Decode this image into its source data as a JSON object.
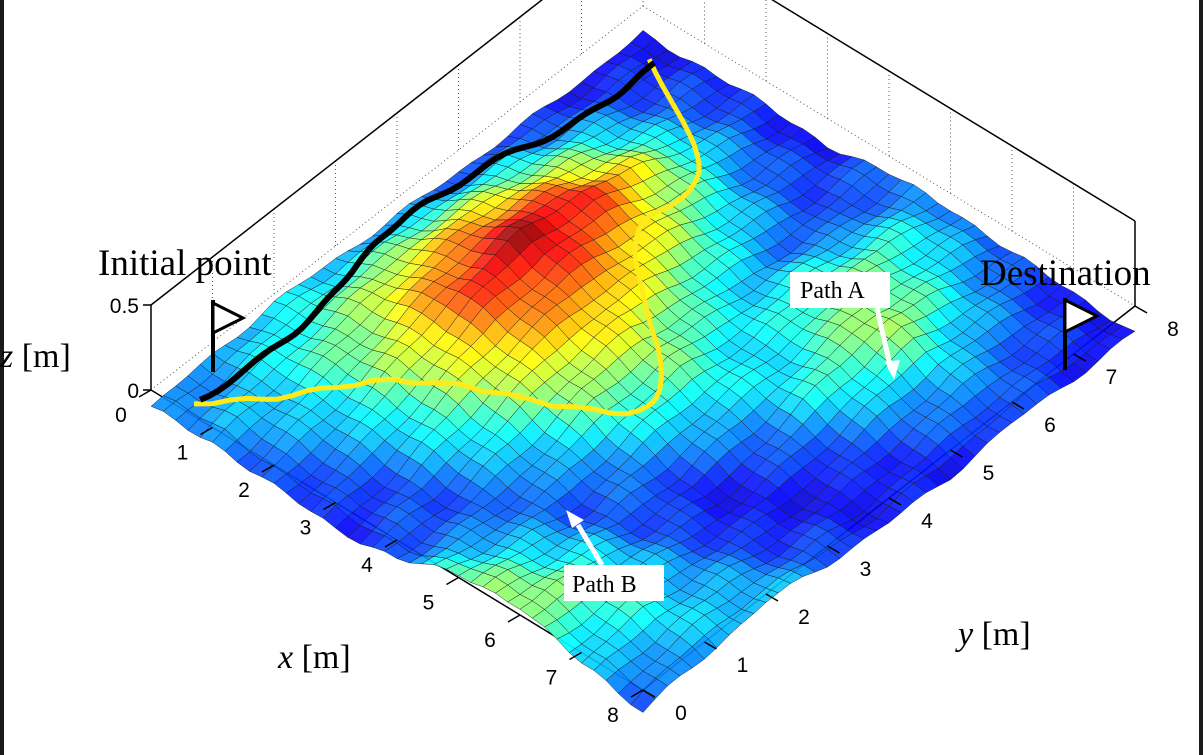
{
  "chart_data": {
    "type": "surface",
    "x": [
      0,
      1,
      2,
      3,
      4,
      5,
      6,
      7,
      8
    ],
    "y": [
      0,
      1,
      2,
      3,
      4,
      5,
      6,
      7,
      8
    ],
    "zlim": [
      0,
      0.5
    ],
    "x_ticks": [
      "0",
      "1",
      "2",
      "3",
      "4",
      "5",
      "6",
      "7",
      "8"
    ],
    "y_ticks": [
      "0",
      "1",
      "2",
      "3",
      "4",
      "5",
      "6",
      "7",
      "8"
    ],
    "z_ticks": [
      "0",
      "0.5"
    ],
    "xlabel_var": "x",
    "xlabel_unit": "[m]",
    "ylabel_var": "y",
    "ylabel_unit": "[m]",
    "zlabel_var": "z",
    "zlabel_unit": "[m]",
    "colormap": "jet",
    "grid": true,
    "z_grid_rows": [
      [
        0.1,
        0.13,
        0.15,
        0.13,
        0.1,
        0.08,
        0.06,
        0.05,
        0.05
      ],
      [
        0.12,
        0.16,
        0.22,
        0.28,
        0.3,
        0.25,
        0.18,
        0.1,
        0.06
      ],
      [
        0.08,
        0.14,
        0.25,
        0.38,
        0.45,
        0.4,
        0.28,
        0.14,
        0.06
      ],
      [
        0.05,
        0.1,
        0.22,
        0.32,
        0.35,
        0.3,
        0.2,
        0.1,
        0.05
      ],
      [
        0.1,
        0.08,
        0.14,
        0.24,
        0.26,
        0.18,
        0.12,
        0.08,
        0.1
      ],
      [
        0.22,
        0.14,
        0.08,
        0.14,
        0.18,
        0.15,
        0.22,
        0.2,
        0.12
      ],
      [
        0.26,
        0.2,
        0.1,
        0.05,
        0.1,
        0.2,
        0.26,
        0.16,
        0.08
      ],
      [
        0.14,
        0.18,
        0.12,
        0.06,
        0.05,
        0.1,
        0.14,
        0.1,
        0.06
      ],
      [
        0.08,
        0.12,
        0.16,
        0.1,
        0.06,
        0.05,
        0.08,
        0.06,
        0.05
      ]
    ],
    "annotations": {
      "initial_point": "Initial point",
      "destination": "Destination",
      "path_a": "Path A",
      "path_b": "Path B"
    },
    "paths": [
      {
        "name": "Path A",
        "color": "#000000"
      },
      {
        "name": "Path B",
        "color": "#ffeb1a"
      }
    ]
  }
}
